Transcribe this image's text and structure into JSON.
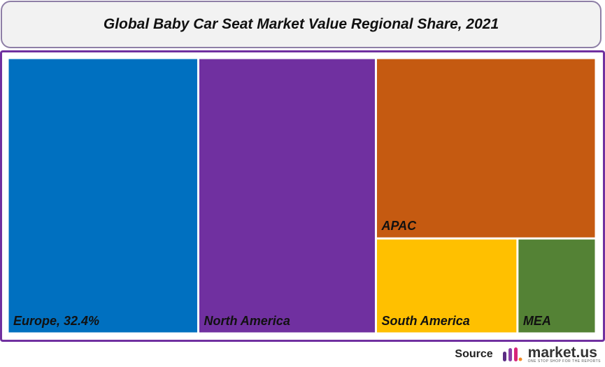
{
  "chart_data": {
    "type": "treemap",
    "title": "Global Baby Car Seat Market Value Regional Share, 2021",
    "categories": [
      "Europe, 32.4%",
      "North America",
      "APAC",
      "South America",
      "MEA"
    ],
    "values": [
      32.4,
      30.2,
      24.5,
      8.3,
      4.6
    ],
    "colors": [
      "#0070c0",
      "#7030a0",
      "#c55a11",
      "#ffc000",
      "#548235"
    ]
  },
  "footer": {
    "source": "Source",
    "brand": "market.us",
    "tagline": "ONE STOP SHOP FOR THE REPORTS"
  }
}
